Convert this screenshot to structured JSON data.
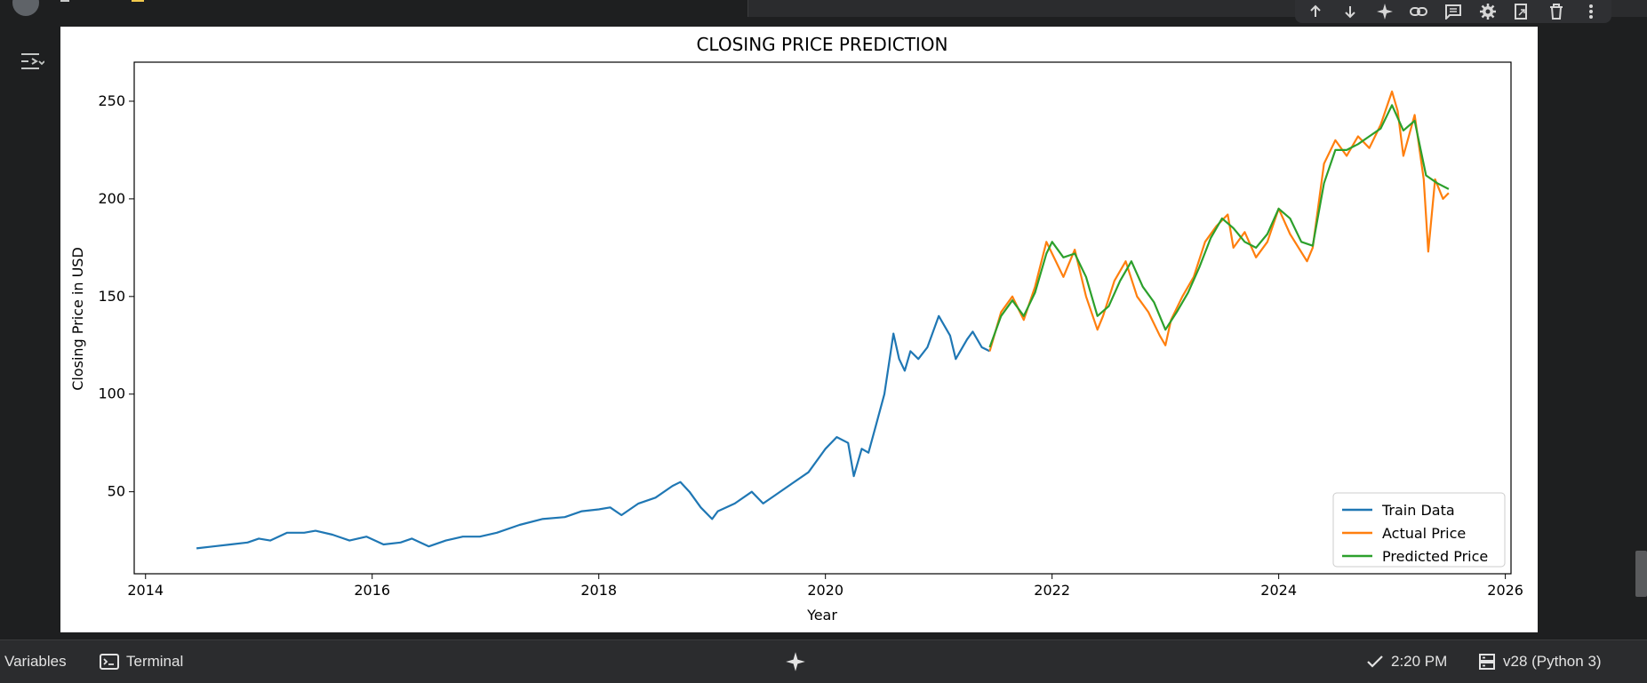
{
  "window": {
    "cell_toolbar": {
      "icons": [
        "arrow-up-icon",
        "arrow-down-icon",
        "sparkle-icon",
        "link-icon",
        "comment-icon",
        "gear-icon",
        "mirror-cell-icon",
        "trash-icon",
        "more-vert-icon"
      ]
    }
  },
  "statusbar": {
    "variables_label": "Variables",
    "terminal_label": "Terminal",
    "time": "2:20 PM",
    "runtime": "v28 (Python 3)"
  },
  "colors": {
    "train": "#1f77b4",
    "actual": "#ff7f0e",
    "predicted": "#2ca02c",
    "app_background": "#1e1f20",
    "statusbar": "#2b2c2e"
  },
  "chart_data": {
    "type": "line",
    "title": "CLOSING PRICE PREDICTION",
    "xlabel": "Year",
    "ylabel": "Closing Price in USD",
    "xlim": [
      2013.9,
      2026.05
    ],
    "ylim": [
      8,
      270
    ],
    "xticks": [
      2014,
      2016,
      2018,
      2020,
      2022,
      2024,
      2026
    ],
    "yticks": [
      50,
      100,
      150,
      200,
      250
    ],
    "grid": false,
    "legend_position": "lower right",
    "series": [
      {
        "name": "Train Data",
        "color": "#1f77b4",
        "x": [
          2014.45,
          2014.6,
          2014.75,
          2014.9,
          2015.0,
          2015.1,
          2015.25,
          2015.4,
          2015.5,
          2015.65,
          2015.8,
          2015.95,
          2016.1,
          2016.25,
          2016.35,
          2016.5,
          2016.65,
          2016.8,
          2016.95,
          2017.1,
          2017.3,
          2017.5,
          2017.7,
          2017.85,
          2018.0,
          2018.1,
          2018.2,
          2018.35,
          2018.5,
          2018.65,
          2018.72,
          2018.8,
          2018.9,
          2019.0,
          2019.05,
          2019.2,
          2019.35,
          2019.45,
          2019.55,
          2019.7,
          2019.85,
          2020.0,
          2020.1,
          2020.2,
          2020.25,
          2020.32,
          2020.38,
          2020.45,
          2020.52,
          2020.6,
          2020.65,
          2020.7,
          2020.75,
          2020.82,
          2020.9,
          2021.0,
          2021.1,
          2021.15,
          2021.25,
          2021.3,
          2021.38,
          2021.45
        ],
        "values": [
          21,
          22,
          23,
          24,
          26,
          25,
          29,
          29,
          30,
          28,
          25,
          27,
          23,
          24,
          26,
          22,
          25,
          27,
          27,
          29,
          33,
          36,
          37,
          40,
          41,
          42,
          38,
          44,
          47,
          53,
          55,
          50,
          42,
          36,
          40,
          44,
          50,
          44,
          48,
          54,
          60,
          72,
          78,
          75,
          58,
          72,
          70,
          85,
          100,
          131,
          118,
          112,
          122,
          118,
          124,
          140,
          130,
          118,
          128,
          132,
          124,
          122
        ]
      },
      {
        "name": "Actual Price",
        "color": "#ff7f0e",
        "x": [
          2021.45,
          2021.55,
          2021.65,
          2021.75,
          2021.85,
          2021.95,
          2022.0,
          2022.1,
          2022.2,
          2022.3,
          2022.4,
          2022.45,
          2022.55,
          2022.65,
          2022.75,
          2022.85,
          2022.95,
          2023.0,
          2023.05,
          2023.15,
          2023.25,
          2023.35,
          2023.45,
          2023.55,
          2023.6,
          2023.7,
          2023.8,
          2023.9,
          2024.0,
          2024.1,
          2024.25,
          2024.3,
          2024.4,
          2024.5,
          2024.6,
          2024.7,
          2024.8,
          2024.9,
          2025.0,
          2025.05,
          2025.1,
          2025.2,
          2025.28,
          2025.32,
          2025.38,
          2025.45,
          2025.5
        ],
        "values": [
          122,
          142,
          150,
          138,
          155,
          178,
          172,
          160,
          174,
          150,
          133,
          140,
          158,
          168,
          150,
          142,
          130,
          125,
          138,
          150,
          160,
          178,
          186,
          192,
          175,
          183,
          170,
          178,
          195,
          182,
          168,
          175,
          218,
          230,
          222,
          232,
          226,
          238,
          255,
          245,
          222,
          243,
          210,
          173,
          210,
          200,
          203
        ]
      },
      {
        "name": "Predicted Price",
        "color": "#2ca02c",
        "x": [
          2021.45,
          2021.55,
          2021.65,
          2021.75,
          2021.85,
          2021.95,
          2022.0,
          2022.1,
          2022.2,
          2022.3,
          2022.4,
          2022.5,
          2022.6,
          2022.7,
          2022.8,
          2022.9,
          2023.0,
          2023.1,
          2023.2,
          2023.3,
          2023.4,
          2023.5,
          2023.6,
          2023.7,
          2023.8,
          2023.9,
          2024.0,
          2024.1,
          2024.2,
          2024.3,
          2024.4,
          2024.5,
          2024.6,
          2024.7,
          2024.8,
          2024.9,
          2025.0,
          2025.1,
          2025.2,
          2025.3,
          2025.4,
          2025.5
        ],
        "values": [
          124,
          140,
          148,
          140,
          152,
          172,
          178,
          170,
          172,
          160,
          140,
          145,
          158,
          168,
          155,
          147,
          133,
          142,
          152,
          165,
          180,
          190,
          185,
          178,
          175,
          182,
          195,
          190,
          178,
          176,
          208,
          225,
          225,
          228,
          232,
          236,
          248,
          235,
          240,
          212,
          208,
          205
        ]
      }
    ]
  }
}
